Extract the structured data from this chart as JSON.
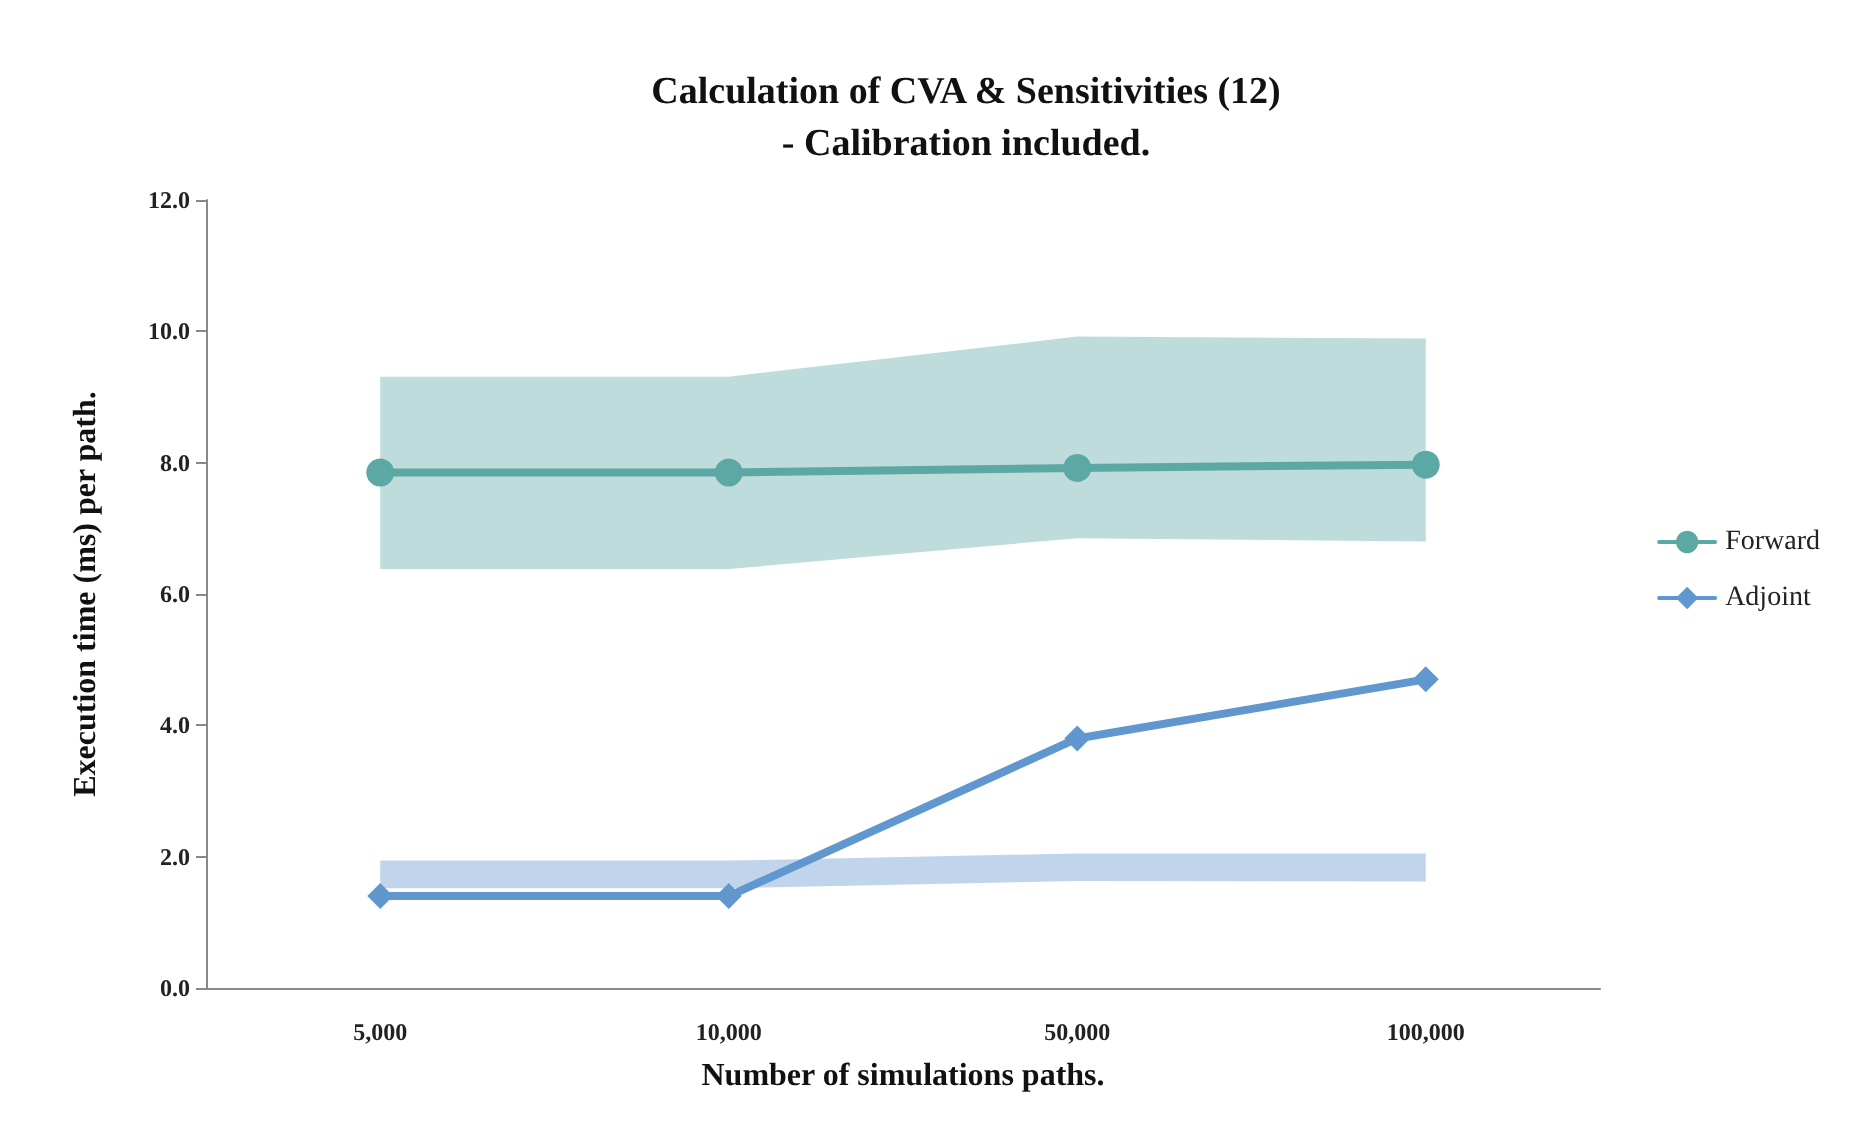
{
  "chart_data": {
    "type": "line",
    "title": "Calculation of CVA & Sensitivities (12)\n- Calibration included.",
    "xlabel": "Number of simulations paths.",
    "ylabel": "Execution time (ms) per path.",
    "categories": [
      "5,000",
      "10,000",
      "50,000",
      "100,000"
    ],
    "series": [
      {
        "name": "Forward",
        "color": "#5ba8a4",
        "marker": "circle",
        "values": [
          7.85,
          7.85,
          7.92,
          7.97
        ],
        "lower": [
          6.38,
          6.38,
          6.85,
          6.8
        ],
        "upper": [
          9.31,
          9.31,
          9.92,
          9.89
        ]
      },
      {
        "name": "Adjoint",
        "color": "#6197cf",
        "marker": "diamond",
        "values": [
          1.4,
          1.4,
          3.8,
          4.7
        ],
        "lower": [
          1.52,
          1.52,
          1.63,
          1.62
        ],
        "upper": [
          1.94,
          1.94,
          2.05,
          2.05
        ]
      }
    ],
    "ylim": [
      0,
      12
    ],
    "yticks": [
      {
        "value": 0,
        "label": "0.0"
      },
      {
        "value": 2,
        "label": "2.0"
      },
      {
        "value": 4,
        "label": "4.0"
      },
      {
        "value": 6,
        "label": "6.0"
      },
      {
        "value": 8,
        "label": "8.0"
      },
      {
        "value": 10,
        "label": "10.0"
      },
      {
        "value": 12,
        "label": "12.0"
      }
    ],
    "grid": false,
    "legend": "right",
    "line_style": "solid"
  }
}
